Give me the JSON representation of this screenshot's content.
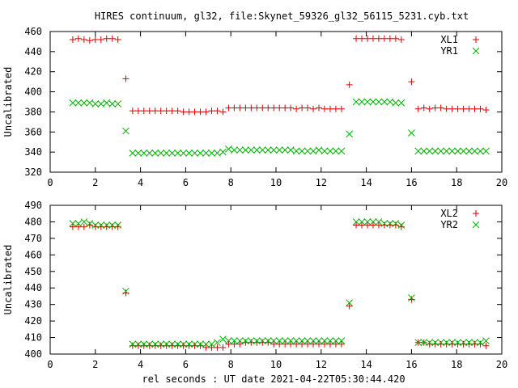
{
  "title": "HIRES continuum, gl32, file:Skynet_59326_gl32_56115_5231.cyb.txt",
  "xlabel": "rel seconds : UT date 2021-04-22T05:30:44.420",
  "colors": {
    "red": "#e00000",
    "green": "#00b000",
    "axis": "#000000"
  },
  "chart_data": [
    {
      "type": "scatter",
      "ylabel": "Uncalibrated",
      "xlim": [
        0,
        20
      ],
      "ylim": [
        320,
        460
      ],
      "xticks": [
        0,
        2,
        4,
        6,
        8,
        10,
        12,
        14,
        16,
        18,
        20
      ],
      "yticks": [
        320,
        340,
        360,
        380,
        400,
        420,
        440,
        460
      ],
      "legend_position": "top-right",
      "series": [
        {
          "name": "XL1",
          "marker": "plus",
          "color": "#e00000",
          "x": [
            1.0,
            1.25,
            1.5,
            1.75,
            2.0,
            2.25,
            2.5,
            2.75,
            3.0,
            3.35,
            3.65,
            3.9,
            4.15,
            4.4,
            4.65,
            4.9,
            5.15,
            5.4,
            5.65,
            5.9,
            6.15,
            6.4,
            6.65,
            6.9,
            7.15,
            7.4,
            7.65,
            7.9,
            8.15,
            8.4,
            8.65,
            8.9,
            9.15,
            9.4,
            9.65,
            9.9,
            10.15,
            10.4,
            10.65,
            10.9,
            11.15,
            11.4,
            11.65,
            11.9,
            12.15,
            12.4,
            12.65,
            12.9,
            13.25,
            13.55,
            13.8,
            14.05,
            14.3,
            14.55,
            14.8,
            15.05,
            15.3,
            15.55,
            16.0,
            16.3,
            16.55,
            16.8,
            17.05,
            17.3,
            17.55,
            17.8,
            18.05,
            18.3,
            18.55,
            18.8,
            19.05,
            19.3
          ],
          "y": [
            452,
            453,
            452,
            451,
            452,
            452,
            453,
            453,
            452,
            413,
            381,
            381,
            381,
            381,
            381,
            381,
            381,
            381,
            381,
            380,
            380,
            380,
            380,
            380,
            381,
            381,
            380,
            384,
            384,
            384,
            384,
            384,
            384,
            384,
            384,
            384,
            384,
            384,
            384,
            383,
            384,
            384,
            383,
            384,
            383,
            383,
            383,
            383,
            407,
            453,
            453,
            453,
            453,
            453,
            453,
            453,
            453,
            452,
            410,
            383,
            384,
            383,
            384,
            384,
            383,
            383,
            383,
            383,
            383,
            383,
            383,
            382
          ]
        },
        {
          "name": "YR1",
          "marker": "cross",
          "color": "#00b000",
          "x": [
            1.0,
            1.25,
            1.5,
            1.75,
            2.0,
            2.25,
            2.5,
            2.75,
            3.0,
            3.35,
            3.65,
            3.9,
            4.15,
            4.4,
            4.65,
            4.9,
            5.15,
            5.4,
            5.65,
            5.9,
            6.15,
            6.4,
            6.65,
            6.9,
            7.15,
            7.4,
            7.65,
            7.9,
            8.15,
            8.4,
            8.65,
            8.9,
            9.15,
            9.4,
            9.65,
            9.9,
            10.15,
            10.4,
            10.65,
            10.9,
            11.15,
            11.4,
            11.65,
            11.9,
            12.15,
            12.4,
            12.65,
            12.9,
            13.25,
            13.55,
            13.8,
            14.05,
            14.3,
            14.55,
            14.8,
            15.05,
            15.3,
            15.55,
            16.0,
            16.3,
            16.55,
            16.8,
            17.05,
            17.3,
            17.55,
            17.8,
            18.05,
            18.3,
            18.55,
            18.8,
            19.05,
            19.3
          ],
          "y": [
            389,
            389,
            389,
            389,
            388,
            388,
            389,
            388,
            388,
            361,
            339,
            339,
            339,
            339,
            339,
            339,
            339,
            339,
            339,
            339,
            339,
            339,
            339,
            339,
            339,
            339,
            340,
            343,
            342,
            342,
            342,
            342,
            342,
            342,
            342,
            342,
            342,
            342,
            342,
            341,
            341,
            341,
            341,
            342,
            341,
            341,
            341,
            341,
            358,
            390,
            390,
            390,
            390,
            390,
            390,
            390,
            389,
            389,
            359,
            341,
            341,
            341,
            341,
            341,
            341,
            341,
            341,
            341,
            341,
            341,
            341,
            341
          ]
        }
      ]
    },
    {
      "type": "scatter",
      "ylabel": "Uncalibrated",
      "xlim": [
        0,
        20
      ],
      "ylim": [
        400,
        490
      ],
      "xticks": [
        0,
        2,
        4,
        6,
        8,
        10,
        12,
        14,
        16,
        18,
        20
      ],
      "yticks": [
        400,
        410,
        420,
        430,
        440,
        450,
        460,
        470,
        480,
        490
      ],
      "legend_position": "top-right",
      "series": [
        {
          "name": "XL2",
          "marker": "plus",
          "color": "#e00000",
          "x": [
            1.0,
            1.25,
            1.5,
            1.75,
            2.0,
            2.25,
            2.5,
            2.75,
            3.0,
            3.35,
            3.65,
            3.9,
            4.15,
            4.4,
            4.65,
            4.9,
            5.15,
            5.4,
            5.65,
            5.9,
            6.15,
            6.4,
            6.65,
            6.9,
            7.15,
            7.4,
            7.65,
            7.9,
            8.15,
            8.4,
            8.65,
            8.9,
            9.15,
            9.4,
            9.65,
            9.9,
            10.15,
            10.4,
            10.65,
            10.9,
            11.15,
            11.4,
            11.65,
            11.9,
            12.15,
            12.4,
            12.65,
            12.9,
            13.25,
            13.55,
            13.8,
            14.05,
            14.3,
            14.55,
            14.8,
            15.05,
            15.3,
            15.55,
            16.0,
            16.3,
            16.55,
            16.8,
            17.05,
            17.3,
            17.55,
            17.8,
            18.05,
            18.3,
            18.55,
            18.8,
            19.05,
            19.3
          ],
          "y": [
            477,
            477,
            477,
            478,
            477,
            477,
            477,
            477,
            477,
            437,
            405,
            405,
            405,
            405,
            405,
            405,
            405,
            405,
            405,
            405,
            405,
            405,
            405,
            404,
            404,
            404,
            404,
            406,
            406,
            406,
            407,
            407,
            407,
            407,
            407,
            406,
            406,
            406,
            406,
            406,
            406,
            406,
            406,
            406,
            406,
            406,
            406,
            406,
            429,
            478,
            478,
            478,
            478,
            478,
            478,
            478,
            478,
            477,
            433,
            407,
            407,
            406,
            406,
            406,
            406,
            406,
            406,
            406,
            406,
            406,
            406,
            405
          ]
        },
        {
          "name": "YR2",
          "marker": "cross",
          "color": "#00b000",
          "x": [
            1.0,
            1.25,
            1.5,
            1.75,
            2.0,
            2.25,
            2.5,
            2.75,
            3.0,
            3.35,
            3.65,
            3.9,
            4.15,
            4.4,
            4.65,
            4.9,
            5.15,
            5.4,
            5.65,
            5.9,
            6.15,
            6.4,
            6.65,
            6.9,
            7.15,
            7.4,
            7.65,
            7.9,
            8.15,
            8.4,
            8.65,
            8.9,
            9.15,
            9.4,
            9.65,
            9.9,
            10.15,
            10.4,
            10.65,
            10.9,
            11.15,
            11.4,
            11.65,
            11.9,
            12.15,
            12.4,
            12.65,
            12.9,
            13.25,
            13.55,
            13.8,
            14.05,
            14.3,
            14.55,
            14.8,
            15.05,
            15.3,
            15.55,
            16.0,
            16.3,
            16.55,
            16.8,
            17.05,
            17.3,
            17.55,
            17.8,
            18.05,
            18.3,
            18.55,
            18.8,
            19.05,
            19.3
          ],
          "y": [
            479,
            479,
            480,
            479,
            478,
            478,
            478,
            478,
            478,
            438,
            406,
            406,
            406,
            406,
            406,
            406,
            406,
            406,
            406,
            406,
            406,
            406,
            406,
            406,
            406,
            407,
            409,
            408,
            408,
            408,
            408,
            408,
            408,
            408,
            408,
            408,
            408,
            408,
            408,
            408,
            408,
            408,
            408,
            408,
            408,
            408,
            408,
            408,
            431,
            480,
            480,
            480,
            480,
            480,
            479,
            479,
            479,
            478,
            434,
            407,
            407,
            407,
            407,
            407,
            407,
            407,
            407,
            407,
            407,
            407,
            407,
            408
          ]
        }
      ]
    }
  ]
}
